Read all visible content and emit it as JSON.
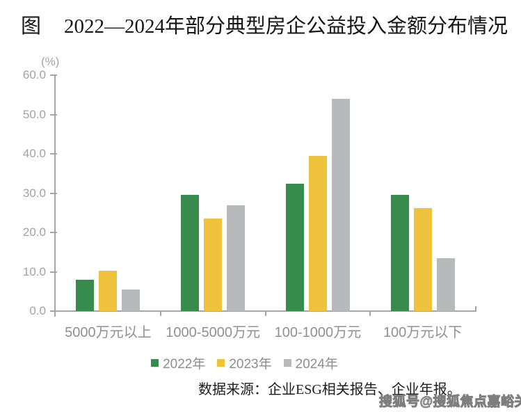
{
  "title": {
    "prefix": "图",
    "text": "2022—2024年部分典型房企公益投入金额分布情况"
  },
  "chart_data": {
    "type": "bar",
    "unit_label": "(%)",
    "categories": [
      "5000万元以上",
      "1000-5000万元",
      "100-1000万元",
      "100万元以下"
    ],
    "series": [
      {
        "name": "2022年",
        "color": "#368b4d",
        "values": [
          8.0,
          29.5,
          32.4,
          29.5
        ]
      },
      {
        "name": "2023年",
        "color": "#eec23d",
        "values": [
          10.3,
          23.6,
          39.4,
          26.2
        ]
      },
      {
        "name": "2024年",
        "color": "#b8b9bb",
        "values": [
          5.4,
          26.9,
          53.9,
          13.4
        ]
      }
    ],
    "ylim": [
      0,
      60
    ],
    "ytick_step": 10,
    "ytick_labels": [
      "0.0",
      "10.0",
      "20.0",
      "30.0",
      "40.0",
      "50.0",
      "60.0"
    ],
    "grid": false,
    "legend_position": "bottom",
    "axis_color": "#a6a6a6",
    "tick_label_color": "#a2a2a2",
    "category_label_color": "#8e9092"
  },
  "source": "数据来源：企业ESG相关报告、企业年报。",
  "watermark": "搜狐号@搜狐焦点嘉峪关站"
}
